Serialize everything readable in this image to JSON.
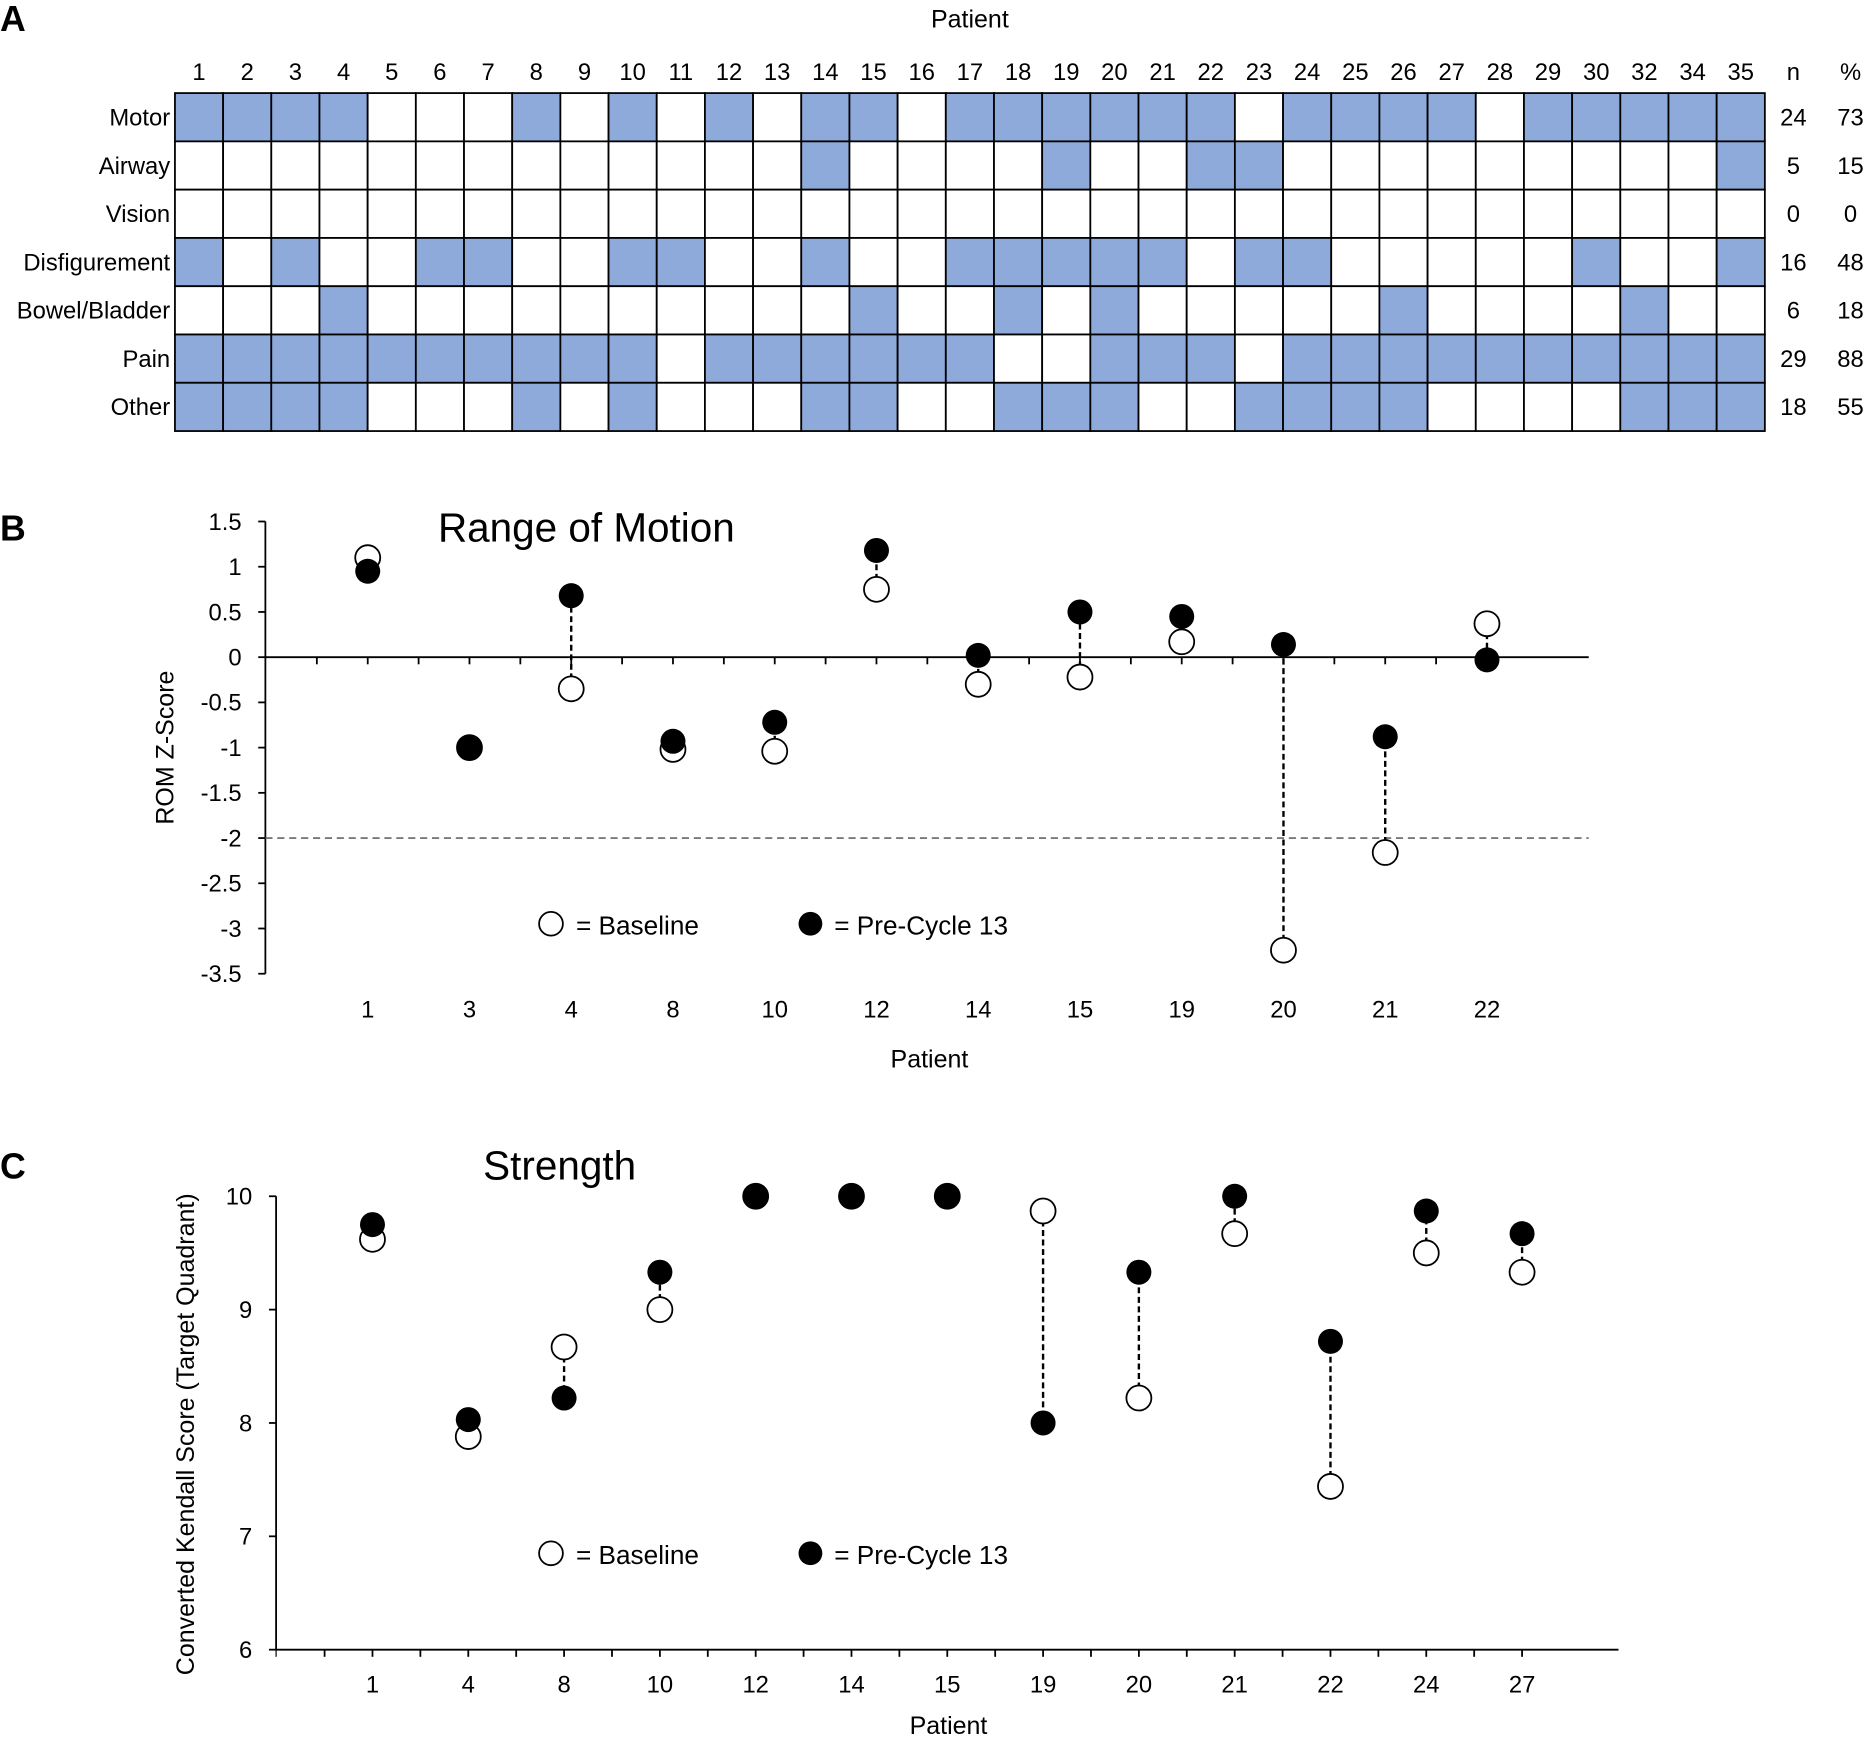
{
  "panel_labels": {
    "a": "A",
    "b": "B",
    "c": "C"
  },
  "colors": {
    "filled": "#8eaadb",
    "empty": "#ffffff",
    "grid": "#000000"
  },
  "chart_data": [
    {
      "type": "heatmap",
      "title": "Patient",
      "columns": [
        "1",
        "2",
        "3",
        "4",
        "5",
        "6",
        "7",
        "8",
        "9",
        "10",
        "11",
        "12",
        "13",
        "14",
        "15",
        "16",
        "17",
        "18",
        "19",
        "20",
        "21",
        "22",
        "23",
        "24",
        "25",
        "26",
        "27",
        "28",
        "29",
        "30",
        "32",
        "34",
        "35"
      ],
      "n_header": "n",
      "pct_header": "%",
      "rows": [
        {
          "label": "Motor",
          "n": "24",
          "pct": "73",
          "present": [
            "1",
            "2",
            "3",
            "4",
            "8",
            "10",
            "12",
            "14",
            "15",
            "17",
            "18",
            "19",
            "20",
            "21",
            "22",
            "24",
            "25",
            "26",
            "27",
            "29",
            "30",
            "32",
            "34",
            "35"
          ]
        },
        {
          "label": "Airway",
          "n": "5",
          "pct": "15",
          "present": [
            "14",
            "19",
            "22",
            "23",
            "35"
          ]
        },
        {
          "label": "Vision",
          "n": "0",
          "pct": "0",
          "present": []
        },
        {
          "label": "Disfigurement",
          "n": "16",
          "pct": "48",
          "present": [
            "1",
            "3",
            "6",
            "7",
            "10",
            "11",
            "14",
            "17",
            "18",
            "19",
            "20",
            "21",
            "23",
            "24",
            "30",
            "35"
          ]
        },
        {
          "label": "Bowel/Bladder",
          "n": "6",
          "pct": "18",
          "present": [
            "4",
            "15",
            "18",
            "20",
            "26",
            "32"
          ]
        },
        {
          "label": "Pain",
          "n": "29",
          "pct": "88",
          "present": [
            "1",
            "2",
            "3",
            "4",
            "5",
            "6",
            "7",
            "8",
            "9",
            "10",
            "12",
            "13",
            "14",
            "15",
            "16",
            "17",
            "20",
            "21",
            "22",
            "24",
            "25",
            "26",
            "27",
            "28",
            "29",
            "30",
            "32",
            "34",
            "35"
          ]
        },
        {
          "label": "Other",
          "n": "18",
          "pct": "55",
          "present": [
            "1",
            "2",
            "3",
            "4",
            "8",
            "10",
            "14",
            "15",
            "18",
            "19",
            "20",
            "23",
            "24",
            "25",
            "26",
            "32",
            "34",
            "35"
          ]
        }
      ]
    },
    {
      "type": "scatter",
      "title": "Range of Motion",
      "xlabel": "Patient",
      "ylabel": "ROM Z-Score",
      "ylim": [
        -3.5,
        1.5
      ],
      "yticks": [
        "1.5",
        "1",
        "0.5",
        "0",
        "-0.5",
        "-1",
        "-1.5",
        "-2",
        "-2.5",
        "-3",
        "-3.5"
      ],
      "reference_line": -2,
      "categories": [
        "1",
        "3",
        "4",
        "8",
        "10",
        "12",
        "14",
        "15",
        "19",
        "20",
        "21",
        "22"
      ],
      "series": [
        {
          "name": "= Baseline",
          "values": [
            1.1,
            -1.0,
            -0.35,
            -1.02,
            -1.04,
            0.75,
            -0.3,
            -0.22,
            0.17,
            -3.24,
            -2.16,
            0.37
          ]
        },
        {
          "name": "= Pre-Cycle 13",
          "values": [
            0.95,
            -1.0,
            0.68,
            -0.93,
            -0.72,
            1.18,
            0.02,
            0.5,
            0.45,
            0.14,
            -0.88,
            -0.03
          ]
        }
      ],
      "legend": "bottom-center"
    },
    {
      "type": "scatter",
      "title": "Strength",
      "xlabel": "Patient",
      "ylabel": "Converted Kendall Score (Target Quadrant)",
      "ylim": [
        6,
        10
      ],
      "yticks": [
        "10",
        "9",
        "8",
        "7",
        "6"
      ],
      "categories": [
        "1",
        "4",
        "8",
        "10",
        "12",
        "14",
        "15",
        "19",
        "20",
        "21",
        "22",
        "24",
        "27"
      ],
      "series": [
        {
          "name": "= Baseline",
          "values": [
            9.62,
            7.88,
            8.67,
            9.0,
            10,
            10,
            10,
            9.87,
            8.22,
            9.67,
            7.44,
            9.5,
            9.33
          ]
        },
        {
          "name": "= Pre-Cycle 13",
          "values": [
            9.75,
            8.03,
            8.22,
            9.33,
            10,
            10,
            10,
            8.0,
            9.33,
            10,
            8.72,
            9.87,
            9.67
          ]
        }
      ],
      "legend": "bottom-center"
    }
  ]
}
